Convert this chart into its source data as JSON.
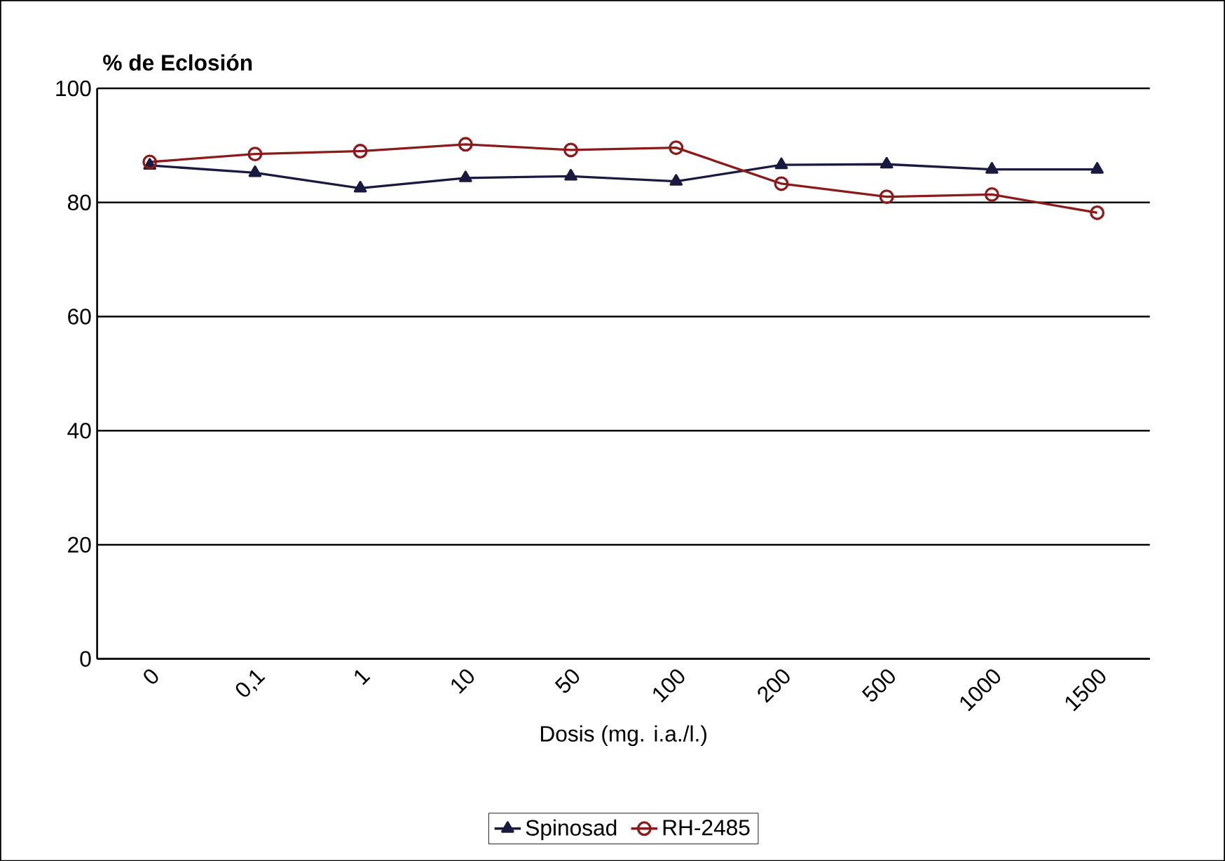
{
  "chart_data": {
    "type": "line",
    "ylabel": "% de Eclosión",
    "xlabel": "Dosis (mg. i.a./l.)",
    "categories": [
      "0",
      "0,1",
      "1",
      "10",
      "50",
      "100",
      "200",
      "500",
      "1000",
      "1500"
    ],
    "series": [
      {
        "name": "Spinosad",
        "color": "#1a1a40",
        "marker": "triangle",
        "values": [
          86.5,
          85.2,
          82.5,
          84.3,
          84.6,
          83.7,
          86.6,
          86.7,
          85.8,
          85.8
        ]
      },
      {
        "name": "RH-2485",
        "color": "#8b1a1a",
        "marker": "circle",
        "values": [
          87.1,
          88.5,
          89.0,
          90.2,
          89.2,
          89.6,
          83.3,
          81.0,
          81.4,
          78.2
        ]
      }
    ],
    "ylim": [
      0,
      100
    ],
    "yticks": [
      0,
      20,
      40,
      60,
      80,
      100
    ],
    "grid": "y",
    "legend": "bottom"
  }
}
